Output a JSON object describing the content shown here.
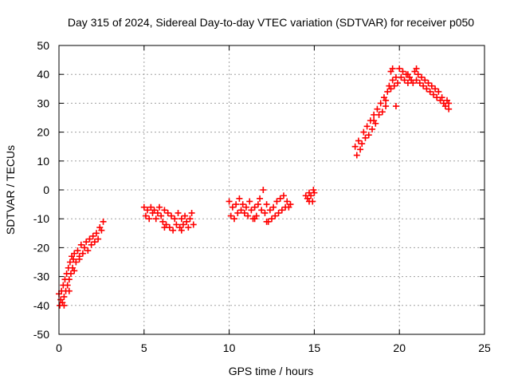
{
  "chart_data": {
    "type": "scatter",
    "title": "Day 315 of 2024, Sidereal Day-to-day VTEC variation (SDTVAR) for receiver p050",
    "xlabel": "GPS time / hours",
    "ylabel": "SDTVAR / TECUs",
    "xlim": [
      0,
      25
    ],
    "ylim": [
      -50,
      50
    ],
    "xticks": [
      0,
      5,
      10,
      15,
      20,
      25
    ],
    "yticks": [
      -50,
      -40,
      -30,
      -20,
      -10,
      0,
      10,
      20,
      30,
      40,
      50
    ],
    "xtick_labels": [
      "0",
      "5",
      "10",
      "15",
      "20",
      "25"
    ],
    "ytick_labels": [
      "-50",
      "-40",
      "-30",
      "-20",
      "-10",
      "0",
      "10",
      "20",
      "30",
      "40",
      "50"
    ],
    "grid": true,
    "marker": "+",
    "color": "#ff0000",
    "series": [
      {
        "name": "SDTVAR",
        "points": [
          [
            0.0,
            -36
          ],
          [
            0.05,
            -40
          ],
          [
            0.1,
            -38
          ],
          [
            0.15,
            -35
          ],
          [
            0.2,
            -39
          ],
          [
            0.25,
            -33
          ],
          [
            0.3,
            -37
          ],
          [
            0.35,
            -31
          ],
          [
            0.4,
            -35
          ],
          [
            0.45,
            -29
          ],
          [
            0.5,
            -33
          ],
          [
            0.55,
            -27
          ],
          [
            0.6,
            -31
          ],
          [
            0.65,
            -25
          ],
          [
            0.7,
            -29
          ],
          [
            0.75,
            -23
          ],
          [
            0.8,
            -27
          ],
          [
            0.85,
            -24
          ],
          [
            0.9,
            -22
          ],
          [
            1.0,
            -25
          ],
          [
            1.1,
            -21
          ],
          [
            1.2,
            -23
          ],
          [
            1.3,
            -19
          ],
          [
            1.4,
            -22
          ],
          [
            1.5,
            -20
          ],
          [
            1.6,
            -18
          ],
          [
            1.7,
            -21
          ],
          [
            1.8,
            -17
          ],
          [
            1.9,
            -19
          ],
          [
            2.0,
            -16
          ],
          [
            2.1,
            -18
          ],
          [
            2.2,
            -15
          ],
          [
            2.3,
            -17
          ],
          [
            2.4,
            -13
          ],
          [
            2.5,
            -14
          ],
          [
            2.6,
            -11
          ],
          [
            0.3,
            -40
          ],
          [
            0.6,
            -35
          ],
          [
            0.9,
            -28
          ],
          [
            1.2,
            -24
          ],
          [
            5.0,
            -6
          ],
          [
            5.1,
            -9
          ],
          [
            5.2,
            -7
          ],
          [
            5.3,
            -10
          ],
          [
            5.4,
            -6
          ],
          [
            5.5,
            -8
          ],
          [
            5.6,
            -7
          ],
          [
            5.7,
            -10
          ],
          [
            5.8,
            -8
          ],
          [
            5.9,
            -6
          ],
          [
            6.0,
            -9
          ],
          [
            6.1,
            -11
          ],
          [
            6.2,
            -7
          ],
          [
            6.3,
            -12
          ],
          [
            6.4,
            -8
          ],
          [
            6.5,
            -13
          ],
          [
            6.6,
            -9
          ],
          [
            6.7,
            -14
          ],
          [
            6.8,
            -10
          ],
          [
            6.9,
            -12
          ],
          [
            7.0,
            -8
          ],
          [
            7.1,
            -13
          ],
          [
            7.2,
            -10
          ],
          [
            7.3,
            -12
          ],
          [
            7.4,
            -9
          ],
          [
            7.5,
            -11
          ],
          [
            7.6,
            -13
          ],
          [
            7.7,
            -10
          ],
          [
            7.8,
            -8
          ],
          [
            7.9,
            -12
          ],
          [
            6.2,
            -13
          ],
          [
            7.2,
            -14
          ],
          [
            10.0,
            -4
          ],
          [
            10.1,
            -9
          ],
          [
            10.2,
            -6
          ],
          [
            10.3,
            -10
          ],
          [
            10.4,
            -5
          ],
          [
            10.5,
            -8
          ],
          [
            10.6,
            -3
          ],
          [
            10.7,
            -7
          ],
          [
            10.8,
            -5
          ],
          [
            10.9,
            -8
          ],
          [
            11.0,
            -6
          ],
          [
            11.1,
            -9
          ],
          [
            11.2,
            -4
          ],
          [
            11.3,
            -7
          ],
          [
            11.4,
            -10
          ],
          [
            11.5,
            -6
          ],
          [
            11.6,
            -9
          ],
          [
            11.7,
            -5
          ],
          [
            11.8,
            -3
          ],
          [
            11.9,
            -7
          ],
          [
            12.0,
            0
          ],
          [
            12.1,
            -8
          ],
          [
            12.2,
            -5
          ],
          [
            12.3,
            -11
          ],
          [
            12.4,
            -7
          ],
          [
            12.5,
            -10
          ],
          [
            12.6,
            -6
          ],
          [
            12.7,
            -9
          ],
          [
            12.8,
            -4
          ],
          [
            12.9,
            -8
          ],
          [
            13.0,
            -3
          ],
          [
            13.1,
            -7
          ],
          [
            13.2,
            -2
          ],
          [
            13.3,
            -6
          ],
          [
            13.4,
            -4
          ],
          [
            13.5,
            -6
          ],
          [
            13.6,
            -5
          ],
          [
            11.5,
            -10
          ],
          [
            12.2,
            -11
          ],
          [
            14.5,
            -2
          ],
          [
            14.6,
            -3
          ],
          [
            14.7,
            -4
          ],
          [
            14.8,
            -2
          ],
          [
            14.9,
            -4
          ],
          [
            15.0,
            -1
          ],
          [
            14.95,
            0
          ],
          [
            14.7,
            -1
          ],
          [
            17.4,
            15
          ],
          [
            17.5,
            12
          ],
          [
            17.6,
            17
          ],
          [
            17.7,
            14
          ],
          [
            17.8,
            16
          ],
          [
            17.9,
            20
          ],
          [
            18.0,
            18
          ],
          [
            18.1,
            22
          ],
          [
            18.2,
            19
          ],
          [
            18.3,
            24
          ],
          [
            18.4,
            21
          ],
          [
            18.5,
            26
          ],
          [
            18.6,
            23
          ],
          [
            18.7,
            28
          ],
          [
            18.8,
            26
          ],
          [
            18.9,
            30
          ],
          [
            19.0,
            27
          ],
          [
            19.1,
            32
          ],
          [
            19.2,
            29
          ],
          [
            19.3,
            34
          ],
          [
            19.4,
            36
          ],
          [
            19.5,
            35
          ],
          [
            19.6,
            38
          ],
          [
            19.7,
            36
          ],
          [
            19.8,
            39
          ],
          [
            19.9,
            37
          ],
          [
            20.0,
            42
          ],
          [
            20.1,
            39
          ],
          [
            20.2,
            41
          ],
          [
            20.3,
            38
          ],
          [
            20.4,
            40
          ],
          [
            20.5,
            37
          ],
          [
            20.6,
            39
          ],
          [
            20.7,
            38
          ],
          [
            20.8,
            37
          ],
          [
            20.9,
            41
          ],
          [
            21.0,
            38
          ],
          [
            21.1,
            40
          ],
          [
            21.2,
            37
          ],
          [
            21.3,
            39
          ],
          [
            21.4,
            36
          ],
          [
            21.5,
            38
          ],
          [
            21.6,
            35
          ],
          [
            21.7,
            37
          ],
          [
            21.8,
            34
          ],
          [
            21.9,
            36
          ],
          [
            22.0,
            33
          ],
          [
            22.1,
            35
          ],
          [
            22.2,
            32
          ],
          [
            22.3,
            34
          ],
          [
            22.4,
            31
          ],
          [
            22.5,
            32
          ],
          [
            22.6,
            30
          ],
          [
            22.7,
            29
          ],
          [
            22.8,
            31
          ],
          [
            22.9,
            28
          ],
          [
            19.5,
            41
          ],
          [
            19.6,
            42
          ],
          [
            19.8,
            29
          ],
          [
            20.5,
            40
          ],
          [
            21.0,
            42
          ],
          [
            22.9,
            30
          ],
          [
            18.5,
            24
          ],
          [
            19.2,
            31
          ]
        ]
      }
    ]
  }
}
